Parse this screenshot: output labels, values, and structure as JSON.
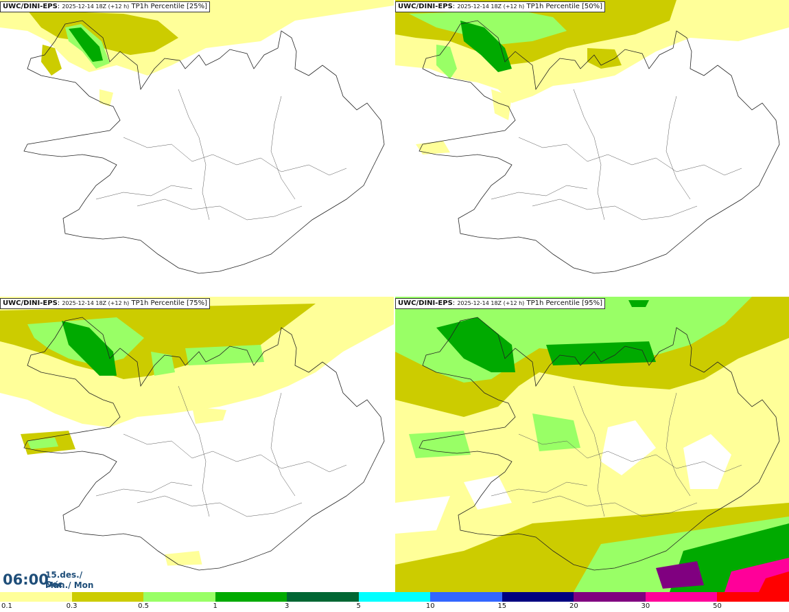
{
  "panels": [
    {
      "model": "UWC/DINI-EPS",
      "run": "2025-12-14 18Z (+12 h)",
      "label": "TP1h Percentile [25%]"
    },
    {
      "model": "UWC/DINI-EPS",
      "run": "2025-12-14 18Z (+12 h)",
      "label": "TP1h Percentile [50%]"
    },
    {
      "model": "UWC/DINI-EPS",
      "run": "2025-12-14 18Z (+12 h)",
      "label": "TP1h Percentile [75%]"
    },
    {
      "model": "UWC/DINI-EPS",
      "run": "2025-12-14 18Z (+12 h)",
      "label": "TP1h Percentile [95%]"
    }
  ],
  "valid_time": {
    "time": "06:00",
    "date_line1": "15.des./ Dec",
    "date_line2": "Mán./ Mon"
  },
  "colorbar": {
    "colors": [
      "#ffff99",
      "#cccc00",
      "#99ff66",
      "#00aa00",
      "#006633",
      "#00ffff",
      "#3366ff",
      "#000080",
      "#800080",
      "#ff0099",
      "#ff0000"
    ],
    "tick_labels": [
      "0.1",
      "0.3",
      "0.5",
      "1",
      "3",
      "5",
      "10",
      "15",
      "20",
      "30",
      "50"
    ]
  }
}
